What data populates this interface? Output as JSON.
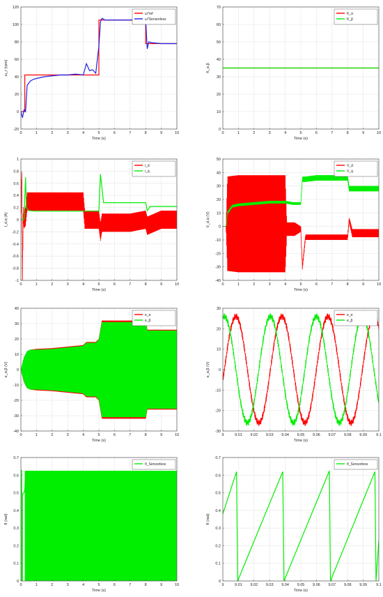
{
  "colors": {
    "red": "#ff0000",
    "blue": "#1f1fe6",
    "green": "#00ee00",
    "grid": "#e6e6e6",
    "axis": "#555555"
  },
  "chart_data": [
    {
      "type": "line",
      "xlabel": "Time (s)",
      "ylabel": "ω_r (rpm)",
      "xlim": [
        0,
        10
      ],
      "ylim": [
        -20,
        120
      ],
      "xticks": [
        0,
        1,
        2,
        3,
        4,
        5,
        6,
        7,
        8,
        9,
        10
      ],
      "yticks": [
        -20,
        0,
        20,
        40,
        60,
        80,
        100,
        120
      ],
      "legend": "top-right",
      "series": [
        {
          "name": "ω*ref",
          "color": "red",
          "x": [
            0,
            0.25,
            0.25,
            5,
            5,
            8,
            8,
            10
          ],
          "y": [
            0,
            0,
            42,
            42,
            105,
            105,
            78,
            78
          ]
        },
        {
          "name": "ω*Sensorless",
          "color": "blue",
          "x": [
            0,
            0.1,
            0.2,
            0.3,
            0.4,
            0.6,
            0.8,
            1,
            1.5,
            2,
            2.5,
            3,
            3.5,
            4,
            4.2,
            4.4,
            4.6,
            4.8,
            5,
            5.1,
            5.2,
            5.4,
            6,
            7,
            7.5,
            8,
            8.1,
            8.2,
            8.4,
            9,
            10
          ],
          "y": [
            0,
            -7,
            2,
            0,
            30,
            35,
            37,
            38,
            40,
            41,
            42,
            42,
            43,
            42,
            55,
            47,
            48,
            44,
            75,
            103,
            107,
            105,
            105,
            105,
            106,
            105,
            72,
            80,
            79,
            78,
            78
          ]
        }
      ]
    },
    {
      "type": "line",
      "xlabel": "Time (s)",
      "ylabel": "K_α,β",
      "xlim": [
        0,
        10
      ],
      "ylim": [
        0,
        70
      ],
      "xticks": [
        0,
        1,
        2,
        3,
        4,
        5,
        6,
        7,
        8,
        9,
        10
      ],
      "yticks": [
        0,
        10,
        20,
        30,
        40,
        50,
        60,
        70
      ],
      "legend": "top-right",
      "series": [
        {
          "name": "K_α",
          "color": "red",
          "x": [
            0,
            10
          ],
          "y": [
            35,
            35
          ]
        },
        {
          "name": "K_β",
          "color": "green",
          "x": [
            0,
            10
          ],
          "y": [
            35,
            35
          ]
        }
      ]
    },
    {
      "type": "line",
      "xlabel": "Time (s)",
      "ylabel": "I_d,q (A)",
      "xlim": [
        0,
        10
      ],
      "ylim": [
        -1,
        1
      ],
      "xticks": [
        0,
        1,
        2,
        3,
        4,
        5,
        6,
        7,
        8,
        9,
        10
      ],
      "yticks": [
        -1,
        -0.8,
        -0.6,
        -0.4,
        -0.2,
        0,
        0.2,
        0.4,
        0.6,
        0.8,
        1
      ],
      "legend": "top-right",
      "series": [
        {
          "name": "i_d",
          "color": "red",
          "x": [
            0,
            0.05,
            0.1,
            0.15,
            0.2,
            0.3,
            0.4,
            1,
            2,
            3,
            4,
            4.1,
            5,
            5.1,
            5.2,
            6,
            7,
            8,
            8.1,
            9,
            10
          ],
          "y": [
            0,
            0.9,
            -0.95,
            0.1,
            0,
            0.05,
            0.3,
            0.3,
            0.3,
            0.3,
            0.3,
            0,
            0,
            -0.2,
            -0.05,
            -0.05,
            -0.05,
            0,
            -0.1,
            0,
            0
          ],
          "band": [
            0.15,
            0.15,
            0.15,
            0.15,
            0.15,
            0.15,
            0.15,
            0.15,
            0.15,
            0.15,
            0.15,
            0.15,
            0.15,
            0.15,
            0.15,
            0.15,
            0.15,
            0.15,
            0.15,
            0.15,
            0.15
          ]
        },
        {
          "name": "i_q",
          "color": "green",
          "x": [
            0,
            0.2,
            0.3,
            0.35,
            0.5,
            1,
            2,
            3,
            4,
            4.2,
            5,
            5.1,
            5.3,
            6,
            7,
            8,
            8.1,
            8.3,
            9,
            10
          ],
          "y": [
            0,
            0,
            0.7,
            0.2,
            0.15,
            0.14,
            0.14,
            0.14,
            0.14,
            0.14,
            0.14,
            0.75,
            0.28,
            0.28,
            0.28,
            0.28,
            0.15,
            0.22,
            0.22,
            0.22
          ]
        }
      ]
    },
    {
      "type": "line",
      "xlabel": "Time (s)",
      "ylabel": "V_d,q (V)",
      "xlim": [
        0,
        10
      ],
      "ylim": [
        -40,
        50
      ],
      "xticks": [
        0,
        1,
        2,
        3,
        4,
        5,
        6,
        7,
        8,
        9,
        10
      ],
      "yticks": [
        -40,
        -30,
        -20,
        -10,
        0,
        10,
        20,
        30,
        40,
        50
      ],
      "legend": "top-right",
      "series": [
        {
          "name": "V_d",
          "color": "red",
          "x": [
            0,
            0.2,
            0.3,
            1,
            2,
            3,
            4,
            4.1,
            4.6,
            5,
            5.1,
            5.3,
            6,
            7,
            8,
            8.1,
            8.3,
            9,
            10
          ],
          "y": [
            0,
            0,
            2,
            2,
            2,
            2,
            2,
            -2,
            -2,
            -2,
            -30,
            -8,
            -8,
            -8,
            -8,
            5,
            -5,
            -5,
            -5
          ],
          "band": [
            0,
            0,
            35,
            36,
            36,
            36,
            36,
            5,
            5,
            2,
            2,
            2,
            2,
            2,
            2,
            2,
            3,
            3,
            3
          ]
        },
        {
          "name": "V_q",
          "color": "green",
          "x": [
            0,
            0.2,
            0.3,
            0.6,
            1,
            2,
            3,
            4,
            4.5,
            5,
            5.1,
            5.3,
            6,
            7,
            8,
            8.1,
            8.3,
            9,
            10
          ],
          "y": [
            0,
            0,
            10,
            15,
            16,
            17,
            18,
            18,
            17,
            17,
            35,
            35,
            36,
            36,
            36,
            28,
            28,
            28,
            28
          ],
          "band": [
            0,
            0,
            1,
            1,
            1,
            1,
            1,
            1,
            1,
            1,
            2,
            2,
            2,
            2,
            2,
            2,
            2,
            2,
            2
          ]
        }
      ]
    },
    {
      "type": "line",
      "xlabel": "Time (s)",
      "ylabel": "e_α,β (V)",
      "xlim": [
        0,
        10
      ],
      "ylim": [
        -40,
        40
      ],
      "xticks": [
        0,
        1,
        2,
        3,
        4,
        5,
        6,
        7,
        8,
        9,
        10
      ],
      "yticks": [
        -40,
        -30,
        -20,
        -10,
        0,
        10,
        20,
        30,
        40
      ],
      "legend": "top-right",
      "series": [
        {
          "name": "e_α",
          "color": "red",
          "envelope": true,
          "x": [
            0,
            0.2,
            0.4,
            0.6,
            1,
            2,
            3,
            4,
            4.2,
            4.8,
            5,
            5.2,
            6,
            7,
            8,
            8.1,
            9,
            10
          ],
          "y": [
            0,
            8,
            12,
            13,
            13.5,
            14,
            15,
            16,
            18,
            18,
            20,
            32,
            32,
            32,
            32,
            26,
            26,
            26
          ]
        },
        {
          "name": "e_β",
          "color": "green",
          "envelope": true,
          "x": [
            0,
            0.2,
            0.4,
            0.6,
            1,
            2,
            3,
            4,
            4.2,
            4.8,
            5,
            5.2,
            6,
            7,
            8,
            8.1,
            9,
            10
          ],
          "y": [
            0,
            8,
            12,
            13,
            13,
            13.5,
            14.5,
            15.5,
            17.5,
            17.5,
            19.5,
            31,
            31,
            31,
            31,
            25.5,
            25.5,
            25.5
          ]
        }
      ]
    },
    {
      "type": "line",
      "xlabel": "Time (s)",
      "ylabel": "e_α,β (V)",
      "xlim": [
        9,
        9.1
      ],
      "ylim": [
        -30,
        30
      ],
      "xticks": [
        9,
        9.01,
        9.02,
        9.03,
        9.04,
        9.05,
        9.06,
        9.07,
        9.08,
        9.09,
        9.1
      ],
      "xticklabels": [
        "9",
        "9.01",
        "9.02",
        "9.03",
        "9.04",
        "9.05",
        "9.06",
        "9.07",
        "9.08",
        "9.09",
        "9.1"
      ],
      "yticks": [
        -30,
        -20,
        -10,
        0,
        10,
        20,
        30
      ],
      "legend": "top-right",
      "series": [
        {
          "name": "e_α",
          "color": "red",
          "sine": {
            "amp": 26,
            "period": 0.0295,
            "phase": 0.001
          }
        },
        {
          "name": "e_β",
          "color": "green",
          "sine": {
            "amp": 26,
            "period": 0.0295,
            "phase": -0.0064
          }
        }
      ]
    },
    {
      "type": "line",
      "xlabel": "Time (s)",
      "ylabel": "θ (rad)",
      "xlim": [
        0,
        10
      ],
      "ylim": [
        0,
        0.7
      ],
      "xticks": [
        0,
        1,
        2,
        3,
        4,
        5,
        6,
        7,
        8,
        9,
        10
      ],
      "yticks": [
        0,
        0.1,
        0.2,
        0.3,
        0.4,
        0.5,
        0.6,
        0.7
      ],
      "legend": "top-right",
      "series": [
        {
          "name": "θ_Sensorless",
          "color": "green",
          "fill": {
            "x0": 0.25,
            "x1": 10,
            "ymin": 0,
            "ymax": 0.625
          },
          "x": [
            0,
            0.05,
            0.05,
            0.1,
            0.1,
            0.2,
            0.25,
            0.3
          ],
          "y": [
            0,
            0,
            0.63,
            0,
            0.49,
            0.5,
            0.52,
            0.62
          ]
        }
      ]
    },
    {
      "type": "line",
      "xlabel": "Time (s)",
      "ylabel": "θ (rad)",
      "xlim": [
        9,
        9.1
      ],
      "ylim": [
        0,
        0.7
      ],
      "xticks": [
        9,
        9.01,
        9.02,
        9.03,
        9.04,
        9.05,
        9.06,
        9.07,
        9.08,
        9.09,
        9.1
      ],
      "xticklabels": [
        "9",
        "9.01",
        "9.02",
        "9.03",
        "9.04",
        "9.05",
        "9.06",
        "9.07",
        "9.08",
        "9.09",
        "9.1"
      ],
      "yticks": [
        0,
        0.1,
        0.2,
        0.3,
        0.4,
        0.5,
        0.6,
        0.7
      ],
      "legend": "top-right",
      "series": [
        {
          "name": "θ_Sensorless",
          "color": "green",
          "x": [
            9,
            9.0088,
            9.0088,
            9.0095,
            9.0095,
            9.0384,
            9.0384,
            9.0392,
            9.0392,
            9.0683,
            9.0683,
            9.069,
            9.069,
            9.0975,
            9.0975,
            9.0982,
            9.0982,
            9.1
          ],
          "y": [
            0.38,
            0.62,
            0.62,
            0,
            0,
            0.62,
            0.62,
            0,
            0,
            0.625,
            0.625,
            0,
            0,
            0.62,
            0.62,
            0,
            0,
            0.23
          ]
        }
      ]
    }
  ]
}
